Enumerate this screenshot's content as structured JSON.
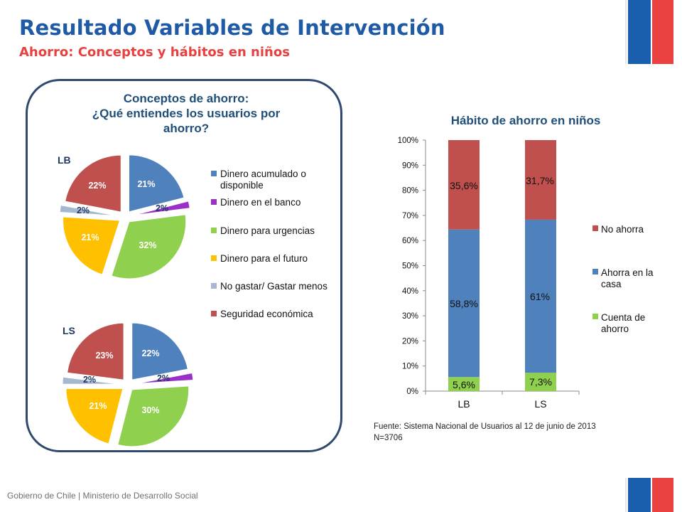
{
  "header": {
    "title": "Resultado Variables de Intervención",
    "subtitle": "Ahorro: Conceptos y hábitos en niños"
  },
  "footer": {
    "text": "Gobierno de Chile | Ministerio de Desarrollo Social",
    "source_line1": "Fuente: Sistema Nacional de Usuarios al 12 de junio de 2013",
    "source_line2": "N=3706"
  },
  "colors": {
    "brand_blue": "#1a5fae",
    "brand_red": "#e8413f",
    "panel_border": "#2f4a6e"
  },
  "chart_data": [
    {
      "type": "pie",
      "title_lines": [
        "Conceptos de ahorro:",
        "¿Qué entiendes los usuarios por",
        "ahorro?"
      ],
      "group_labels": [
        "LB",
        "LS"
      ],
      "categories": [
        "Dinero acumulado o disponible",
        "Dinero en el banco",
        "Dinero para urgencias",
        "Dinero para el futuro",
        "No gastar/ Gastar menos",
        "Seguridad económica"
      ],
      "legend_lines": [
        [
          "Dinero acumulado o",
          "disponible"
        ],
        [
          "Dinero en el banco"
        ],
        [
          "Dinero para urgencias"
        ],
        [
          "Dinero para el futuro"
        ],
        [
          "No gastar/ Gastar menos"
        ],
        [
          "Seguridad económica"
        ]
      ],
      "colors": [
        "#4f81bd",
        "#9b30c8",
        "#8fd14f",
        "#ffc000",
        "#a5b8d0",
        "#c0504d"
      ],
      "series": [
        {
          "name": "LB",
          "values": [
            21,
            2,
            32,
            21,
            2,
            22
          ],
          "labels": [
            "21%",
            "2%",
            "32%",
            "21%",
            "2%",
            "22%"
          ]
        },
        {
          "name": "LS",
          "values": [
            22,
            2,
            30,
            21,
            2,
            23
          ],
          "labels": [
            "22%",
            "2%",
            "30%",
            "21%",
            "2%",
            "23%"
          ]
        }
      ],
      "legend_position": "right"
    },
    {
      "type": "bar",
      "stacked": true,
      "title": "Hábito de ahorro en niños",
      "categories": [
        "LB",
        "LS"
      ],
      "ylim": [
        0,
        100
      ],
      "yticks": [
        "0%",
        "10%",
        "20%",
        "30%",
        "40%",
        "50%",
        "60%",
        "70%",
        "80%",
        "90%",
        "100%"
      ],
      "series": [
        {
          "name": "Cuenta de ahorro",
          "legend_lines": [
            "Cuenta de",
            "ahorro"
          ],
          "color": "#8fd14f",
          "values": [
            5.6,
            7.3
          ],
          "labels": [
            "5,6%",
            "7,3%"
          ]
        },
        {
          "name": "Ahorra en la casa",
          "legend_lines": [
            "Ahorra en la",
            "casa"
          ],
          "color": "#4f81bd",
          "values": [
            58.8,
            61
          ],
          "labels": [
            "58,8%",
            "61%"
          ]
        },
        {
          "name": "No ahorra",
          "legend_lines": [
            "No ahorra"
          ],
          "color": "#c0504d",
          "values": [
            35.6,
            31.7
          ],
          "labels": [
            "35,6%",
            "31,7%"
          ]
        }
      ],
      "legend_position": "right",
      "grid": false
    }
  ]
}
